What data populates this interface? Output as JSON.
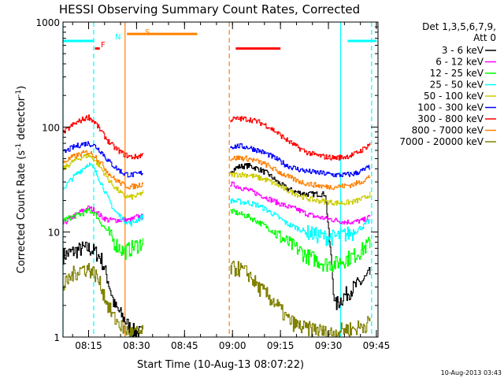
{
  "chart_data": {
    "type": "line",
    "title": "HESSI Observing Summary Count Rates, Corrected",
    "xlabel": "Start Time (10-Aug-13 08:07:22)",
    "ylabel_main": "Corrected Count Rate (s",
    "ylabel_sup1": "-1",
    "ylabel_mid": " detector",
    "ylabel_sup2": "-1",
    "ylabel_end": ")",
    "yscale": "log",
    "ylim": [
      1,
      1000
    ],
    "xlim_min": [
      0,
      98.5
    ],
    "x_ticks": [
      {
        "m": 8.0,
        "label": "08:15"
      },
      {
        "m": 23.0,
        "label": "08:30"
      },
      {
        "m": 38.0,
        "label": "08:45"
      },
      {
        "m": 53.0,
        "label": "09:00"
      },
      {
        "m": 68.0,
        "label": "09:15"
      },
      {
        "m": 83.0,
        "label": "09:30"
      },
      {
        "m": 98.0,
        "label": "09:45"
      }
    ],
    "y_ticks": [
      {
        "v": 1,
        "label": "1"
      },
      {
        "v": 10,
        "label": "10"
      },
      {
        "v": 100,
        "label": "100"
      },
      {
        "v": 1000,
        "label": "1000"
      }
    ],
    "legend": {
      "header1": "Det 1,3,5,6,7,9,",
      "header2": "Att 0",
      "position": "right-outside"
    },
    "series": [
      {
        "name": "3 - 6 keV",
        "color": "#000000",
        "points": [
          [
            0,
            6
          ],
          [
            3,
            6.5
          ],
          [
            6,
            7
          ],
          [
            8,
            7
          ],
          [
            10,
            6.5
          ],
          [
            12,
            5.5
          ],
          [
            14,
            3.5
          ],
          [
            16,
            2
          ],
          [
            19,
            1.5
          ],
          [
            21,
            1.2
          ],
          [
            23,
            1.1
          ],
          [
            25,
            1.1
          ],
          [
            52,
            38
          ],
          [
            55,
            42
          ],
          [
            58,
            43
          ],
          [
            61,
            40
          ],
          [
            64,
            36
          ],
          [
            67,
            30
          ],
          [
            70,
            26
          ],
          [
            73,
            24
          ],
          [
            76,
            23
          ],
          [
            79,
            23
          ],
          [
            82,
            23
          ],
          [
            85,
            2
          ],
          [
            88,
            2.5
          ],
          [
            91,
            3
          ],
          [
            94,
            3.5
          ],
          [
            96,
            4
          ]
        ]
      },
      {
        "name": "6 - 12 keV",
        "color": "#ff00ff",
        "points": [
          [
            0,
            12
          ],
          [
            3,
            14
          ],
          [
            6,
            16
          ],
          [
            8,
            17
          ],
          [
            10,
            16
          ],
          [
            12,
            14
          ],
          [
            14,
            13
          ],
          [
            16,
            13
          ],
          [
            19,
            13
          ],
          [
            21,
            13
          ],
          [
            23,
            14
          ],
          [
            25,
            14
          ],
          [
            52,
            29
          ],
          [
            55,
            27
          ],
          [
            58,
            25
          ],
          [
            61,
            23
          ],
          [
            64,
            21
          ],
          [
            67,
            19
          ],
          [
            70,
            17.5
          ],
          [
            73,
            16.5
          ],
          [
            76,
            15
          ],
          [
            79,
            14
          ],
          [
            82,
            13.5
          ],
          [
            85,
            13
          ],
          [
            88,
            12.5
          ],
          [
            91,
            12.5
          ],
          [
            94,
            13
          ],
          [
            96,
            14
          ]
        ]
      },
      {
        "name": "12 - 25 keV",
        "color": "#00ff00",
        "points": [
          [
            0,
            13
          ],
          [
            3,
            14
          ],
          [
            6,
            15
          ],
          [
            8,
            16
          ],
          [
            10,
            15
          ],
          [
            12,
            12
          ],
          [
            14,
            10
          ],
          [
            16,
            8
          ],
          [
            19,
            6.5
          ],
          [
            21,
            7
          ],
          [
            23,
            7.5
          ],
          [
            25,
            8
          ],
          [
            52,
            16
          ],
          [
            55,
            15
          ],
          [
            58,
            14
          ],
          [
            61,
            12.5
          ],
          [
            64,
            11
          ],
          [
            67,
            9.5
          ],
          [
            70,
            8
          ],
          [
            73,
            7
          ],
          [
            76,
            6
          ],
          [
            79,
            5.5
          ],
          [
            82,
            5
          ],
          [
            85,
            5
          ],
          [
            88,
            5.5
          ],
          [
            91,
            6
          ],
          [
            94,
            7
          ],
          [
            96,
            8
          ]
        ]
      },
      {
        "name": "25 - 50 keV",
        "color": "#00ffff",
        "points": [
          [
            0,
            26
          ],
          [
            3,
            33
          ],
          [
            6,
            40
          ],
          [
            8,
            45
          ],
          [
            10,
            38
          ],
          [
            12,
            29
          ],
          [
            14,
            21
          ],
          [
            16,
            16
          ],
          [
            19,
            13
          ],
          [
            21,
            12
          ],
          [
            23,
            13
          ],
          [
            25,
            14
          ],
          [
            52,
            20
          ],
          [
            55,
            19.5
          ],
          [
            58,
            19
          ],
          [
            61,
            18
          ],
          [
            64,
            16
          ],
          [
            67,
            14
          ],
          [
            70,
            12
          ],
          [
            73,
            11
          ],
          [
            76,
            10
          ],
          [
            79,
            9.5
          ],
          [
            82,
            9
          ],
          [
            85,
            9
          ],
          [
            88,
            9.5
          ],
          [
            91,
            10
          ],
          [
            94,
            11.5
          ],
          [
            96,
            13
          ]
        ]
      },
      {
        "name": "50 - 100 keV",
        "color": "#cccc00",
        "points": [
          [
            0,
            40
          ],
          [
            3,
            47
          ],
          [
            6,
            52
          ],
          [
            8,
            54
          ],
          [
            10,
            48
          ],
          [
            12,
            40
          ],
          [
            14,
            32
          ],
          [
            16,
            27
          ],
          [
            19,
            22
          ],
          [
            21,
            21.5
          ],
          [
            23,
            22
          ],
          [
            25,
            24
          ],
          [
            52,
            35
          ],
          [
            55,
            35.5
          ],
          [
            58,
            35
          ],
          [
            61,
            33
          ],
          [
            64,
            31
          ],
          [
            67,
            28
          ],
          [
            70,
            25
          ],
          [
            73,
            23
          ],
          [
            76,
            21
          ],
          [
            79,
            20
          ],
          [
            82,
            19.5
          ],
          [
            85,
            19
          ],
          [
            88,
            19
          ],
          [
            91,
            19.5
          ],
          [
            94,
            21
          ],
          [
            96,
            23
          ]
        ]
      },
      {
        "name": "100 - 300 keV",
        "color": "#0000ff",
        "points": [
          [
            0,
            57
          ],
          [
            3,
            64
          ],
          [
            6,
            69
          ],
          [
            8,
            70
          ],
          [
            10,
            66
          ],
          [
            12,
            58
          ],
          [
            14,
            48
          ],
          [
            16,
            42
          ],
          [
            19,
            36
          ],
          [
            21,
            35
          ],
          [
            23,
            35.5
          ],
          [
            25,
            37
          ],
          [
            52,
            65
          ],
          [
            55,
            66
          ],
          [
            58,
            64
          ],
          [
            61,
            60
          ],
          [
            64,
            55
          ],
          [
            67,
            49
          ],
          [
            70,
            43
          ],
          [
            73,
            40
          ],
          [
            76,
            38
          ],
          [
            79,
            37
          ],
          [
            82,
            36
          ],
          [
            85,
            35
          ],
          [
            88,
            35
          ],
          [
            91,
            36
          ],
          [
            94,
            39
          ],
          [
            96,
            42
          ]
        ]
      },
      {
        "name": "300 - 800 keV",
        "color": "#ff0000",
        "points": [
          [
            0,
            88
          ],
          [
            3,
            105
          ],
          [
            6,
            118
          ],
          [
            8,
            125
          ],
          [
            10,
            110
          ],
          [
            12,
            90
          ],
          [
            14,
            74
          ],
          [
            16,
            64
          ],
          [
            19,
            55
          ],
          [
            21,
            52
          ],
          [
            23,
            52
          ],
          [
            25,
            55
          ],
          [
            52,
            118
          ],
          [
            55,
            120
          ],
          [
            58,
            119
          ],
          [
            61,
            112
          ],
          [
            64,
            102
          ],
          [
            67,
            88
          ],
          [
            70,
            75
          ],
          [
            73,
            65
          ],
          [
            76,
            58
          ],
          [
            79,
            54
          ],
          [
            82,
            52
          ],
          [
            85,
            51
          ],
          [
            88,
            52
          ],
          [
            91,
            55
          ],
          [
            94,
            62
          ],
          [
            96,
            70
          ]
        ]
      },
      {
        "name": "800 - 7000 keV",
        "color": "#ff8000",
        "points": [
          [
            0,
            46
          ],
          [
            3,
            52
          ],
          [
            6,
            56
          ],
          [
            8,
            58
          ],
          [
            10,
            53
          ],
          [
            12,
            45
          ],
          [
            14,
            37
          ],
          [
            16,
            32
          ],
          [
            19,
            28
          ],
          [
            21,
            27
          ],
          [
            23,
            27.5
          ],
          [
            25,
            29
          ],
          [
            52,
            50
          ],
          [
            55,
            51
          ],
          [
            58,
            50
          ],
          [
            61,
            47
          ],
          [
            64,
            43
          ],
          [
            67,
            38
          ],
          [
            70,
            34
          ],
          [
            73,
            31
          ],
          [
            76,
            29
          ],
          [
            79,
            28
          ],
          [
            82,
            27
          ],
          [
            85,
            27
          ],
          [
            88,
            27.5
          ],
          [
            91,
            28.5
          ],
          [
            94,
            31
          ],
          [
            96,
            34
          ]
        ]
      },
      {
        "name": "7000 - 20000 keV",
        "color": "#808000",
        "points": [
          [
            0,
            3
          ],
          [
            3,
            4
          ],
          [
            6,
            4.5
          ],
          [
            8,
            4.5
          ],
          [
            10,
            4
          ],
          [
            12,
            3
          ],
          [
            14,
            2
          ],
          [
            16,
            1.5
          ],
          [
            19,
            1.2
          ],
          [
            21,
            1.1
          ],
          [
            23,
            1.1
          ],
          [
            25,
            1.1
          ],
          [
            52,
            4.5
          ],
          [
            55,
            4.5
          ],
          [
            58,
            4
          ],
          [
            61,
            3
          ],
          [
            64,
            2.5
          ],
          [
            67,
            2
          ],
          [
            70,
            1.5
          ],
          [
            73,
            1.3
          ],
          [
            76,
            1.2
          ],
          [
            79,
            1.2
          ],
          [
            82,
            1.1
          ],
          [
            85,
            1.1
          ],
          [
            88,
            1.2
          ],
          [
            91,
            1.2
          ],
          [
            94,
            1.3
          ],
          [
            96,
            1.4
          ]
        ]
      }
    ],
    "flag_markers": [
      {
        "label": "F",
        "color": "#ff0000"
      },
      {
        "label": "N",
        "color": "#00ffff"
      },
      {
        "label": "S",
        "color": "#ff8000"
      }
    ],
    "flag_bars": [
      {
        "color": "#00ffff",
        "x0": 0,
        "x1": 9.5,
        "y": 660
      },
      {
        "color": "#ff0000",
        "x0": 10,
        "x1": 11.5,
        "y": 560
      },
      {
        "color": "#ff8000",
        "x0": 20,
        "x1": 42,
        "y": 770
      },
      {
        "color": "#ff0000",
        "x0": 54,
        "x1": 68,
        "y": 560
      },
      {
        "color": "#00ffff",
        "x0": 89,
        "x1": 98,
        "y": 660
      }
    ],
    "vlines": [
      {
        "m": 0.0,
        "color": "#00ffff",
        "style": "solid"
      },
      {
        "m": 9.6,
        "color": "#00ffff",
        "style": "dashed"
      },
      {
        "m": 19.4,
        "color": "#ff8000",
        "style": "solid"
      },
      {
        "m": 52.0,
        "color": "#ff8000",
        "style": "dashed"
      },
      {
        "m": 86.8,
        "color": "#00ffff",
        "style": "solid"
      },
      {
        "m": 96.5,
        "color": "#00ffff",
        "style": "dashed"
      }
    ],
    "footer_timestamp": "10-Aug-2013 03:43",
    "grid": false
  }
}
